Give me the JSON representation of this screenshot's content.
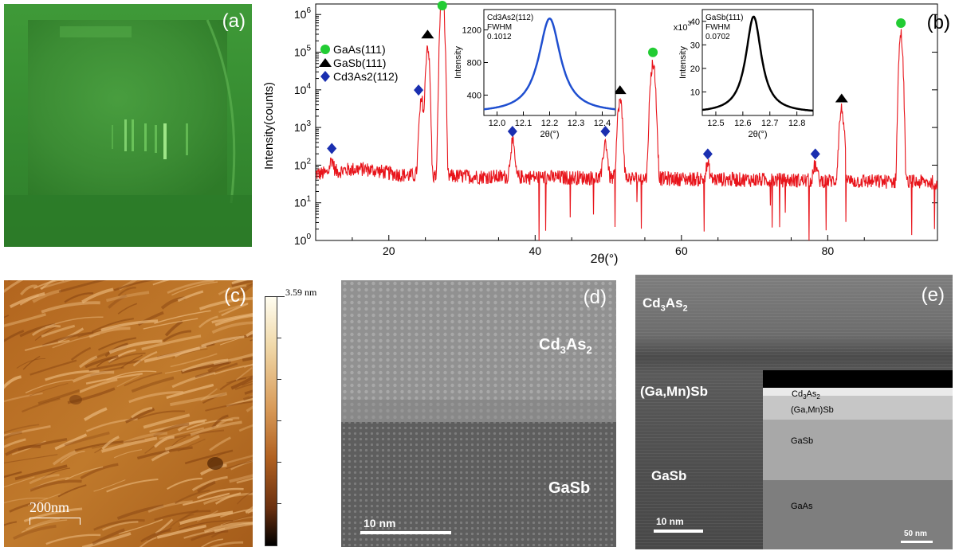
{
  "panels": {
    "a": {
      "label": "(a)"
    },
    "b": {
      "label": "(b)"
    },
    "c": {
      "label": "(c)",
      "scalebar": "200nm",
      "colorbar_max": "3.59 nm"
    },
    "d": {
      "label": "(d)",
      "layer_top": "Cd3As2",
      "layer_bottom": "GaSb",
      "scalebar": "10 nm"
    },
    "e": {
      "label": "(e)",
      "layer_top": "Cd3As2",
      "layer_mid": "(Ga,Mn)Sb",
      "layer_bottom": "GaSb",
      "scalebar": "10 nm",
      "inset": {
        "layer1": "Cd3As2",
        "layer2": "(Ga,Mn)Sb",
        "layer3": "GaSb",
        "layer4": "GaAs",
        "scalebar": "50 nm"
      }
    }
  },
  "colors": {
    "xrd_line": "#e8141b",
    "gaas_marker": "#22cc33",
    "gasb_marker": "#000000",
    "cd3as2_marker": "#1a2fb0",
    "inset1_line": "#1f4fd0",
    "inset2_line": "#000000"
  },
  "chart_data": [
    {
      "type": "line",
      "title": "",
      "xlabel": "2θ(°)",
      "ylabel": "Intensity(counts)",
      "xlim": [
        10,
        95
      ],
      "ylim": [
        1,
        1000000
      ],
      "yscale": "log",
      "xticks": [
        20,
        40,
        60,
        80
      ],
      "yticks": [
        "10^0",
        "10^1",
        "10^2",
        "10^3",
        "10^4",
        "10^5",
        "10^6"
      ],
      "legend": [
        {
          "name": "GaAs(111)",
          "marker": "circle"
        },
        {
          "name": "GaSb(111)",
          "marker": "triangle"
        },
        {
          "name": "Cd3As2(112)",
          "marker": "diamond"
        }
      ],
      "legend_position": "top-left",
      "background_level": 80,
      "peaks": [
        {
          "x": 12.2,
          "y": 140,
          "phase": "Cd3As2(112)"
        },
        {
          "x": 24.5,
          "y": 5000,
          "phase": "Cd3As2(112)"
        },
        {
          "x": 25.3,
          "y": 150000,
          "phase": "GaSb(111)"
        },
        {
          "x": 27.3,
          "y": 5000000,
          "phase": "GaAs(111)"
        },
        {
          "x": 36.9,
          "y": 400,
          "phase": "Cd3As2(112)"
        },
        {
          "x": 49.6,
          "y": 400,
          "phase": "Cd3As2(112)"
        },
        {
          "x": 51.6,
          "y": 5000,
          "phase": "GaSb(111)"
        },
        {
          "x": 56.1,
          "y": 50000,
          "phase": "GaAs(111)"
        },
        {
          "x": 63.6,
          "y": 100,
          "phase": "Cd3As2(112)"
        },
        {
          "x": 78.3,
          "y": 100,
          "phase": "Cd3As2(112)"
        },
        {
          "x": 81.9,
          "y": 3000,
          "phase": "GaSb(111)"
        },
        {
          "x": 90.0,
          "y": 300000,
          "phase": "GaAs(111)"
        }
      ]
    },
    {
      "type": "line",
      "title": "Cd3As2(112)",
      "annotation": [
        "FWHM",
        "0.1012"
      ],
      "xlabel": "2θ(°)",
      "ylabel": "Intensity",
      "xlim": [
        11.95,
        12.45
      ],
      "ylim": [
        150,
        1450
      ],
      "xticks": [
        12.0,
        12.1,
        12.2,
        12.3,
        12.4
      ],
      "yticks": [
        400,
        800,
        1200
      ],
      "peak": {
        "center": 12.2,
        "fwhm": 0.1012,
        "max": 1340,
        "baseline": 180
      }
    },
    {
      "type": "line",
      "title": "GaSb(111)",
      "annotation": [
        "FWHM",
        "0.0702"
      ],
      "xlabel": "2θ(°)",
      "ylabel": "Intensity",
      "xlim": [
        12.45,
        12.86
      ],
      "ylim": [
        0,
        45
      ],
      "xticks": [
        12.5,
        12.6,
        12.7,
        12.8
      ],
      "yticks": [
        10,
        20,
        30,
        40
      ],
      "ytick_suffix": "x10",
      "peak": {
        "center": 12.64,
        "fwhm": 0.0702,
        "max": 42,
        "baseline": 1
      }
    }
  ]
}
